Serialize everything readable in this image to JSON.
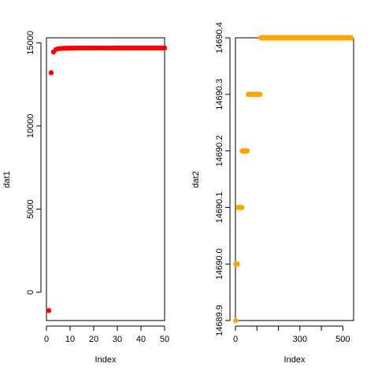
{
  "chart_data": [
    {
      "type": "scatter",
      "title": "",
      "xlabel": "Index",
      "ylabel": "dat1",
      "xlim": [
        0,
        50
      ],
      "ylim": [
        -1700,
        15300
      ],
      "x_ticks": [
        0,
        10,
        20,
        30,
        40,
        50
      ],
      "y_ticks": [
        0,
        5000,
        10000,
        15000
      ],
      "color": "#ff0000",
      "series": [
        {
          "x": [
            1,
            2,
            3,
            4,
            5,
            6,
            7,
            8,
            9,
            10,
            11,
            12,
            13,
            14,
            15,
            16,
            17,
            18,
            19,
            20,
            21,
            22,
            23,
            24,
            25,
            26,
            27,
            28,
            29,
            30,
            31,
            32,
            33,
            34,
            35,
            36,
            37,
            38,
            39,
            40,
            41,
            42,
            43,
            44,
            45,
            46,
            47,
            48,
            49,
            50
          ],
          "y": [
            -1100,
            13200,
            14450,
            14600,
            14640,
            14660,
            14670,
            14675,
            14678,
            14680,
            14682,
            14683,
            14684,
            14685,
            14686,
            14686,
            14687,
            14687,
            14688,
            14688,
            14688,
            14688,
            14689,
            14689,
            14689,
            14689,
            14689,
            14689,
            14689,
            14690,
            14690,
            14690,
            14690,
            14690,
            14690,
            14690,
            14690,
            14690,
            14690,
            14690,
            14690,
            14690,
            14690,
            14690,
            14690,
            14690,
            14690,
            14690,
            14690,
            14690
          ]
        }
      ]
    },
    {
      "type": "scatter",
      "title": "",
      "xlabel": "Index",
      "ylabel": "dat2",
      "xlim": [
        0,
        550
      ],
      "ylim": [
        14689.9,
        14690.4
      ],
      "x_ticks": [
        0,
        100,
        200,
        300,
        400,
        500
      ],
      "x_tick_labels": [
        "0",
        "",
        "",
        "300",
        "",
        "500"
      ],
      "y_ticks": [
        14689.9,
        14690.0,
        14690.1,
        14690.2,
        14690.3,
        14690.4
      ],
      "y_tick_labels": [
        "14689.9",
        "14690.0",
        "14690.1",
        "14690.2",
        "14690.3",
        "14690.4"
      ],
      "color": "#ffa500",
      "segments": [
        {
          "from": 1,
          "to": 1,
          "y": 14689.9
        },
        {
          "from": 2,
          "to": 10,
          "y": 14690.0
        },
        {
          "from": 12,
          "to": 30,
          "y": 14690.1
        },
        {
          "from": 31,
          "to": 55,
          "y": 14690.2
        },
        {
          "from": 60,
          "to": 115,
          "y": 14690.3
        },
        {
          "from": 118,
          "to": 540,
          "y": 14690.4
        }
      ]
    }
  ]
}
